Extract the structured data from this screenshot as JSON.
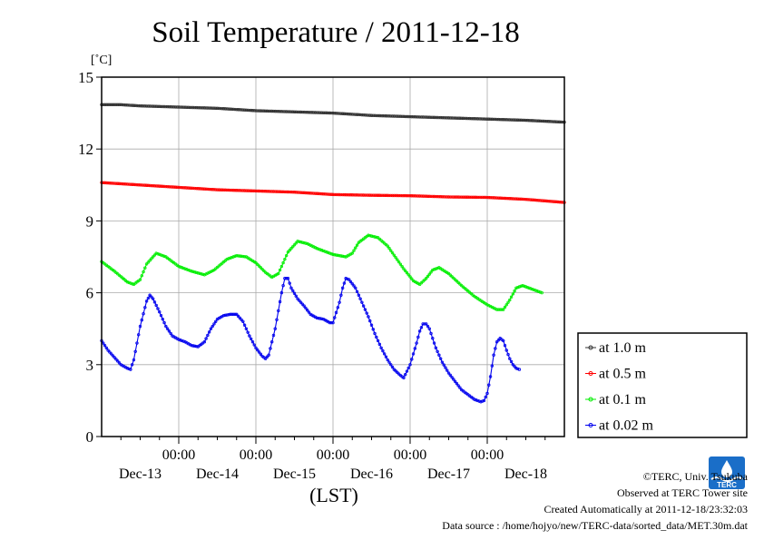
{
  "chart_data": {
    "type": "line",
    "title": "Soil Temperature / 2011-12-18",
    "ylabel": "[˚C]",
    "xlabel": "(LST)",
    "ylim": [
      0,
      15
    ],
    "yticks": [
      0,
      3,
      6,
      9,
      12,
      15
    ],
    "x_range_hours": [
      0,
      144
    ],
    "xticks": [
      {
        "hour": 24,
        "label": "00:00",
        "date": "Dec-13"
      },
      {
        "hour": 48,
        "label": "00:00",
        "date": "Dec-14"
      },
      {
        "hour": 72,
        "label": "00:00",
        "date": "Dec-15"
      },
      {
        "hour": 96,
        "label": "00:00",
        "date": "Dec-16"
      },
      {
        "hour": 120,
        "label": "00:00",
        "date": "Dec-17"
      },
      {
        "hour": 144,
        "label": "",
        "date": "Dec-18"
      }
    ],
    "grid": true,
    "legend_position": "right",
    "series": [
      {
        "name": "at 1.0 m",
        "color": "#333333",
        "points": [
          [
            0,
            13.85
          ],
          [
            6,
            13.85
          ],
          [
            12,
            13.8
          ],
          [
            24,
            13.75
          ],
          [
            36,
            13.7
          ],
          [
            48,
            13.6
          ],
          [
            60,
            13.55
          ],
          [
            72,
            13.5
          ],
          [
            84,
            13.4
          ],
          [
            96,
            13.35
          ],
          [
            108,
            13.3
          ],
          [
            120,
            13.25
          ],
          [
            132,
            13.2
          ],
          [
            144,
            13.12
          ]
        ]
      },
      {
        "name": "at 0.5 m",
        "color": "#ff0000",
        "points": [
          [
            0,
            10.6
          ],
          [
            12,
            10.5
          ],
          [
            24,
            10.4
          ],
          [
            36,
            10.3
          ],
          [
            48,
            10.25
          ],
          [
            60,
            10.2
          ],
          [
            72,
            10.1
          ],
          [
            84,
            10.07
          ],
          [
            96,
            10.05
          ],
          [
            108,
            10.0
          ],
          [
            120,
            9.98
          ],
          [
            132,
            9.9
          ],
          [
            144,
            9.77
          ]
        ]
      },
      {
        "name": "at 0.1 m",
        "color": "#00ee00",
        "points": [
          [
            0,
            7.3
          ],
          [
            4,
            6.9
          ],
          [
            8,
            6.45
          ],
          [
            10,
            6.35
          ],
          [
            12,
            6.55
          ],
          [
            14,
            7.2
          ],
          [
            17,
            7.65
          ],
          [
            20,
            7.5
          ],
          [
            24,
            7.1
          ],
          [
            28,
            6.9
          ],
          [
            32,
            6.75
          ],
          [
            35,
            6.95
          ],
          [
            39,
            7.4
          ],
          [
            42,
            7.55
          ],
          [
            45,
            7.5
          ],
          [
            48,
            7.25
          ],
          [
            51,
            6.85
          ],
          [
            53,
            6.65
          ],
          [
            55,
            6.8
          ],
          [
            58,
            7.7
          ],
          [
            61,
            8.15
          ],
          [
            64,
            8.05
          ],
          [
            67,
            7.85
          ],
          [
            72,
            7.6
          ],
          [
            76,
            7.5
          ],
          [
            78,
            7.65
          ],
          [
            80,
            8.1
          ],
          [
            83,
            8.4
          ],
          [
            86,
            8.3
          ],
          [
            89,
            7.95
          ],
          [
            94,
            7.0
          ],
          [
            97,
            6.5
          ],
          [
            99,
            6.35
          ],
          [
            101,
            6.6
          ],
          [
            103,
            6.95
          ],
          [
            105,
            7.05
          ],
          [
            108,
            6.8
          ],
          [
            112,
            6.3
          ],
          [
            116,
            5.85
          ],
          [
            120,
            5.5
          ],
          [
            123,
            5.3
          ],
          [
            125,
            5.3
          ],
          [
            127,
            5.7
          ],
          [
            129,
            6.2
          ],
          [
            131,
            6.3
          ],
          [
            134,
            6.15
          ],
          [
            137,
            6.0
          ]
        ]
      },
      {
        "name": "at 0.02 m",
        "color": "#0000ee",
        "points": [
          [
            0,
            4.0
          ],
          [
            2,
            3.6
          ],
          [
            4,
            3.3
          ],
          [
            6,
            3.0
          ],
          [
            8,
            2.85
          ],
          [
            9,
            2.8
          ],
          [
            10,
            3.2
          ],
          [
            12,
            4.6
          ],
          [
            14,
            5.65
          ],
          [
            15,
            5.9
          ],
          [
            16,
            5.75
          ],
          [
            18,
            5.2
          ],
          [
            20,
            4.6
          ],
          [
            22,
            4.2
          ],
          [
            24,
            4.05
          ],
          [
            26,
            3.95
          ],
          [
            28,
            3.8
          ],
          [
            30,
            3.75
          ],
          [
            32,
            3.95
          ],
          [
            34,
            4.5
          ],
          [
            36,
            4.9
          ],
          [
            38,
            5.05
          ],
          [
            40,
            5.1
          ],
          [
            42,
            5.1
          ],
          [
            44,
            4.8
          ],
          [
            46,
            4.2
          ],
          [
            48,
            3.7
          ],
          [
            50,
            3.35
          ],
          [
            51,
            3.25
          ],
          [
            52,
            3.4
          ],
          [
            54,
            4.5
          ],
          [
            56,
            6.0
          ],
          [
            57,
            6.6
          ],
          [
            58,
            6.6
          ],
          [
            59,
            6.2
          ],
          [
            61,
            5.75
          ],
          [
            63,
            5.45
          ],
          [
            65,
            5.1
          ],
          [
            67,
            4.95
          ],
          [
            69,
            4.9
          ],
          [
            71,
            4.75
          ],
          [
            72,
            4.75
          ],
          [
            74,
            5.6
          ],
          [
            75,
            6.2
          ],
          [
            76,
            6.6
          ],
          [
            77,
            6.55
          ],
          [
            79,
            6.2
          ],
          [
            81,
            5.6
          ],
          [
            83,
            5.0
          ],
          [
            85,
            4.3
          ],
          [
            87,
            3.7
          ],
          [
            89,
            3.2
          ],
          [
            91,
            2.8
          ],
          [
            93,
            2.55
          ],
          [
            94,
            2.45
          ],
          [
            96,
            3.0
          ],
          [
            98,
            3.9
          ],
          [
            99,
            4.4
          ],
          [
            100,
            4.7
          ],
          [
            101,
            4.7
          ],
          [
            102,
            4.5
          ],
          [
            104,
            3.7
          ],
          [
            106,
            3.1
          ],
          [
            108,
            2.65
          ],
          [
            110,
            2.3
          ],
          [
            112,
            1.95
          ],
          [
            114,
            1.75
          ],
          [
            116,
            1.55
          ],
          [
            118,
            1.45
          ],
          [
            119,
            1.5
          ],
          [
            120,
            1.8
          ],
          [
            121,
            2.5
          ],
          [
            122,
            3.4
          ],
          [
            123,
            3.95
          ],
          [
            124,
            4.1
          ],
          [
            125,
            4.0
          ],
          [
            126,
            3.6
          ],
          [
            127,
            3.25
          ],
          [
            128,
            3.0
          ],
          [
            129,
            2.85
          ],
          [
            130,
            2.8
          ]
        ]
      }
    ]
  },
  "footer": {
    "copyright": "©TERC, Univ. Tsukuba",
    "observed": "Observed at TERC Tower site",
    "created": "Created Automatically at 2011-12-18/23:32:03",
    "source": "Data source : /home/hojyo/new/TERC-data/sorted_data/MET.30m.dat",
    "logo_text": "TERC",
    "logo_color": "#1a6ec8"
  }
}
